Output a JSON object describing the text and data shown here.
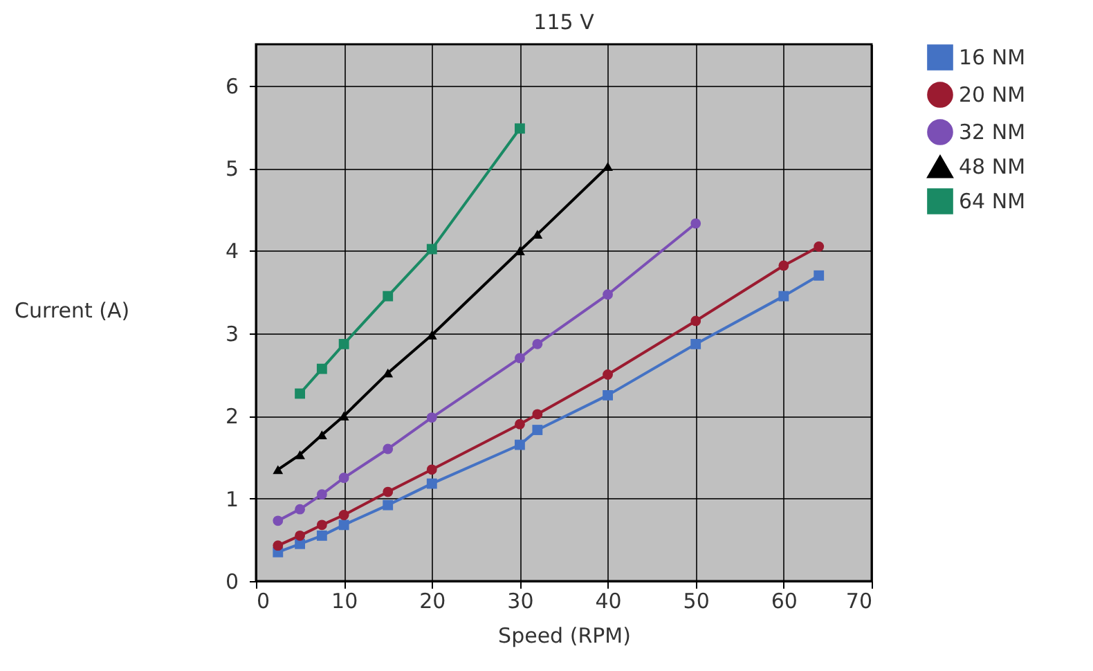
{
  "chart_data": {
    "type": "line",
    "title": "115 V",
    "xlabel": "Speed (RPM)",
    "ylabel": "Current (A)",
    "xlim": [
      0,
      70
    ],
    "xticks": [
      0,
      10,
      20,
      30,
      40,
      50,
      60,
      70
    ],
    "ylim": [
      0,
      6.5
    ],
    "yticks": [
      0,
      1,
      2,
      3,
      4,
      5,
      6
    ],
    "grid": true,
    "legend": "top right",
    "line_style": "solid",
    "x": [
      2.5,
      5,
      7.5,
      10,
      15,
      20,
      30,
      32,
      40,
      50,
      60,
      64
    ],
    "series": [
      {
        "name": "16 NM",
        "color": "#4472c4",
        "marker": "square",
        "values": [
          0.35,
          0.45,
          0.55,
          0.68,
          0.92,
          1.18,
          1.65,
          1.83,
          2.25,
          2.87,
          3.45,
          3.7
        ]
      },
      {
        "name": "20 NM",
        "color": "#9b1b30",
        "marker": "circle",
        "values": [
          0.43,
          0.55,
          0.68,
          0.8,
          1.08,
          1.35,
          1.9,
          2.02,
          2.5,
          3.15,
          3.82,
          4.05
        ]
      },
      {
        "name": "32 NM",
        "color": "#7b4fb5",
        "marker": "circle",
        "values": [
          0.73,
          0.87,
          1.05,
          1.25,
          1.6,
          1.98,
          2.7,
          2.87,
          3.47,
          4.33,
          null,
          null
        ]
      },
      {
        "name": "48 NM",
        "color": "#000000",
        "marker": "triangle",
        "values": [
          1.35,
          1.53,
          1.77,
          2.0,
          2.52,
          2.98,
          4.0,
          4.2,
          5.02,
          null,
          null,
          null
        ]
      },
      {
        "name": "64 NM",
        "color": "#1a8a64",
        "marker": "square",
        "values": [
          null,
          2.27,
          2.57,
          2.87,
          3.45,
          4.02,
          5.48,
          null,
          null,
          null,
          null,
          null
        ]
      }
    ]
  }
}
